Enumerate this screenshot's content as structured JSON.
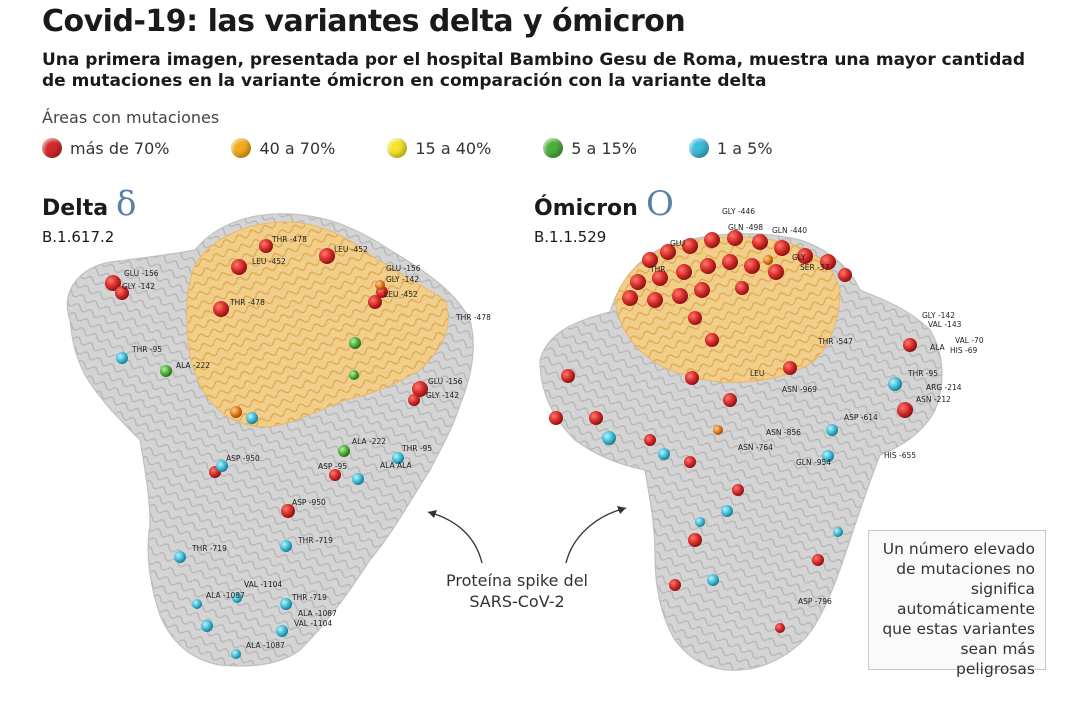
{
  "title": "Covid-19: las variantes delta y ómicron",
  "subtitle": "Una primera imagen, presentada por el hospital Bambino Gesu de Roma, muestra una mayor cantidad de mutaciones en la variante ómicron en comparación con la variante delta",
  "legend": {
    "title": "Áreas con mutaciones",
    "items": [
      {
        "label": "más de 70%",
        "color": "#d42a2a"
      },
      {
        "label": "40 a 70%",
        "color": "#f2a91c"
      },
      {
        "label": "15 a 40%",
        "color": "#f5e22a"
      },
      {
        "label": "5 a 15%",
        "color": "#4caf3a"
      },
      {
        "label": "1 a 5%",
        "color": "#3cbcd8"
      }
    ]
  },
  "delta": {
    "name": "Delta",
    "symbol": "δ",
    "code": "B.1.617.2",
    "labels": [
      "THR -478",
      "LEU -452",
      "GLU -156",
      "GLY -142",
      "LEU -452",
      "GLU -156",
      "GLY -142",
      "LEU -452",
      "THR -478",
      "THR -478",
      "THR -95",
      "ALA -222",
      "GLU -156",
      "GLY -142",
      "ASP -950",
      "ASP -95",
      "ALA -222",
      "THR -95",
      "ALA ALA",
      "ASP -950",
      "THR -719",
      "THR -719",
      "VAL -1104",
      "ALA -1087",
      "THR -719",
      "ALA -1087",
      "VAL -1104",
      "ALA -1087"
    ]
  },
  "omicron": {
    "name": "Ómicron",
    "symbol": "O",
    "code": "B.1.1.529",
    "labels": [
      "GLY -446",
      "GLN -498",
      "GLN -440",
      "GLU",
      "GLY",
      "SER -37",
      "THR",
      "GLY -142",
      "VAL -143",
      "VAL -70",
      "ALA",
      "HIS -69",
      "THR -547",
      "LEU",
      "ASN -969",
      "THR -95",
      "ARG -214",
      "ASN -212",
      "ASP -614",
      "ASN -856",
      "ASN -764",
      "GLN -954",
      "HIS -655",
      "ASP -796"
    ]
  },
  "callout": "Proteína spike del SARS-CoV-2",
  "note": "Un número elevado de mutaciones no significa automáticamente que estas variantes sean más peligrosas",
  "colors": {
    "protein": "#cfcfcf",
    "protein_dark": "#a8a8a8",
    "rbd": "#f3c46a"
  }
}
